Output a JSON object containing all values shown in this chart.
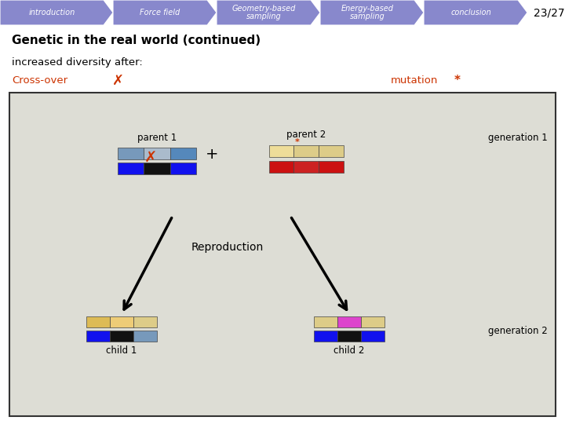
{
  "nav_labels": [
    "introduction",
    "Force field",
    "Geometry-based\nsampling",
    "Energy-based\nsampling",
    "conclusion"
  ],
  "nav_color": "#8888cc",
  "nav_text_color": "white",
  "slide_num": "23/27",
  "title": "Genetic in the real world (continued)",
  "subtitle": "increased diversity after:",
  "crossover_label": "Cross-over",
  "crossover_symbol": "✗",
  "mutation_label": "mutation",
  "mutation_symbol": "*",
  "accent_color": "#cc3300",
  "box_bg": "#ddddd5",
  "bg_color": "#ffffff",
  "parent1_row1_colors": [
    "#7799bb",
    "#aabbcc",
    "#5588bb"
  ],
  "parent1_row2_colors": [
    "#1111ee",
    "#111111",
    "#1111ee"
  ],
  "parent2_row1_colors": [
    "#eedd99",
    "#ddcc88",
    "#ddcc88"
  ],
  "parent2_row2_colors": [
    "#cc1111",
    "#cc2222",
    "#cc1111"
  ],
  "child1_row1_colors": [
    "#ddbb55",
    "#eecc77",
    "#ddcc88"
  ],
  "child1_row2_colors": [
    "#1111ee",
    "#111111",
    "#7799bb"
  ],
  "child2_row1_colors": [
    "#ddcc88",
    "#dd44cc",
    "#ddcc88"
  ],
  "child2_row2_colors": [
    "#1111ee",
    "#111111",
    "#1111ee"
  ]
}
